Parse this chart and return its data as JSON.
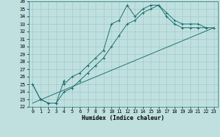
{
  "xlabel": "Humidex (Indice chaleur)",
  "bg_color": "#c0e0e0",
  "grid_color": "#a0c8c8",
  "line_color": "#1a6b6b",
  "xlim": [
    -0.5,
    23.5
  ],
  "ylim": [
    22,
    36
  ],
  "xticks": [
    0,
    1,
    2,
    3,
    4,
    5,
    6,
    7,
    8,
    9,
    10,
    11,
    12,
    13,
    14,
    15,
    16,
    17,
    18,
    19,
    20,
    21,
    22,
    23
  ],
  "yticks": [
    22,
    23,
    24,
    25,
    26,
    27,
    28,
    29,
    30,
    31,
    32,
    33,
    34,
    35,
    36
  ],
  "line1_x": [
    0,
    1,
    2,
    3,
    4,
    4,
    5,
    6,
    7,
    8,
    9,
    10,
    11,
    12,
    13,
    14,
    15,
    16,
    17,
    18,
    19,
    20,
    21,
    22,
    23
  ],
  "line1_y": [
    25,
    23,
    22.5,
    22.5,
    25.5,
    25,
    26,
    26.5,
    27.5,
    28.5,
    29.5,
    33,
    33.5,
    35.5,
    34,
    35,
    35.5,
    35.5,
    34.5,
    33.5,
    33,
    33,
    33,
    32.5,
    32.5
  ],
  "line2_x": [
    0,
    1,
    2,
    3,
    4,
    5,
    6,
    7,
    8,
    9,
    10,
    11,
    12,
    13,
    14,
    15,
    16,
    17,
    18,
    19,
    20,
    21,
    22,
    23
  ],
  "line2_y": [
    25,
    23,
    22.5,
    22.5,
    24,
    24.5,
    25.5,
    26.5,
    27.5,
    28.5,
    30,
    31.5,
    33,
    33.5,
    34.5,
    35,
    35.5,
    34,
    33,
    32.5,
    32.5,
    32.5,
    32.5,
    32.5
  ],
  "line3_x": [
    0,
    23
  ],
  "line3_y": [
    22.5,
    32.5
  ]
}
